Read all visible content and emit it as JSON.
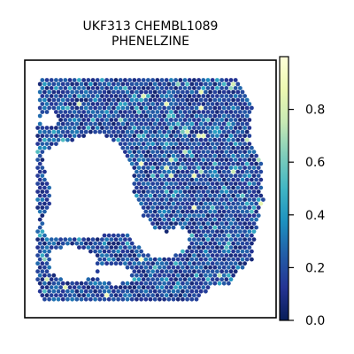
{
  "chart_data": {
    "type": "heatmap",
    "title": "UKF313 CHEMBL1089\nPHENELZINE",
    "title_lines": [
      "UKF313 CHEMBL1089",
      "PHENELZINE"
    ],
    "xlabel": "",
    "ylabel": "",
    "colormap": "YlGnBu",
    "color_range": [
      0.0,
      1.0
    ],
    "colorbar": {
      "ticks": [
        0.0,
        0.2,
        0.4,
        0.6,
        0.8
      ],
      "tick_labels": [
        "0.0",
        "0.2",
        "0.4",
        "0.6",
        "0.8"
      ]
    },
    "value_summary": {
      "typical_low": 0.1,
      "typical_high": 0.35,
      "max_observed": 0.95
    },
    "grid": false,
    "legend": "right"
  },
  "colors": {
    "frame": "#000000",
    "background": "#ffffff"
  }
}
